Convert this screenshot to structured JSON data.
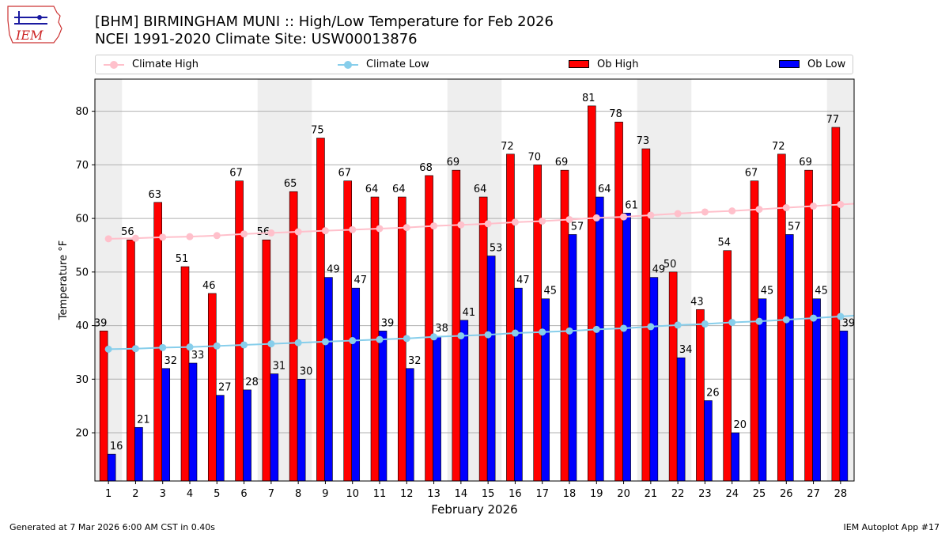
{
  "header": {
    "logo_text": "IEM",
    "title_line1": "[BHM] BIRMINGHAM MUNI :: High/Low Temperature for Feb 2026",
    "title_line2": "NCEI 1991-2020 Climate Site: USW00013876"
  },
  "legend": {
    "climate_high": "Climate High",
    "climate_low": "Climate Low",
    "ob_high": "Ob High",
    "ob_low": "Ob Low"
  },
  "colors": {
    "ob_high": "#ff0000",
    "ob_low": "#0000ff",
    "climate_high": "#ffc0cb",
    "climate_low": "#87ceeb",
    "weekend_band": "#eeeeee",
    "grid": "#b0b0b0"
  },
  "chart_data": {
    "type": "bar",
    "title": "[BHM] BIRMINGHAM MUNI :: High/Low Temperature for Feb 2026",
    "xlabel": "February 2026",
    "ylabel": "Temperature °F",
    "ylim": [
      11,
      86
    ],
    "yticks": [
      20,
      30,
      40,
      50,
      60,
      70,
      80
    ],
    "categories": [
      "1",
      "2",
      "3",
      "4",
      "5",
      "6",
      "7",
      "8",
      "9",
      "10",
      "11",
      "12",
      "13",
      "14",
      "15",
      "16",
      "17",
      "18",
      "19",
      "20",
      "21",
      "22",
      "23",
      "24",
      "25",
      "26",
      "27",
      "28"
    ],
    "weekend_days": [
      1,
      7,
      8,
      14,
      15,
      21,
      22,
      28
    ],
    "grid": true,
    "legend_position": "top",
    "series": [
      {
        "name": "Ob High",
        "kind": "bar",
        "values": [
          39,
          56,
          63,
          51,
          46,
          67,
          56,
          65,
          75,
          67,
          64,
          64,
          68,
          69,
          64,
          72,
          70,
          69,
          81,
          78,
          73,
          50,
          43,
          54,
          67,
          72,
          69,
          77
        ]
      },
      {
        "name": "Ob Low",
        "kind": "bar",
        "values": [
          16,
          21,
          32,
          33,
          27,
          28,
          31,
          30,
          49,
          47,
          39,
          32,
          38,
          41,
          53,
          47,
          45,
          57,
          64,
          61,
          49,
          34,
          26,
          20,
          45,
          57,
          45,
          39
        ]
      },
      {
        "name": "Climate High",
        "kind": "line",
        "values": [
          56.2,
          56.3,
          56.5,
          56.6,
          56.8,
          57.1,
          57.3,
          57.5,
          57.7,
          57.9,
          58.1,
          58.3,
          58.6,
          58.8,
          59.0,
          59.3,
          59.5,
          59.8,
          60.1,
          60.3,
          60.6,
          60.9,
          61.2,
          61.4,
          61.7,
          62.0,
          62.3,
          62.6
        ]
      },
      {
        "name": "Climate Low",
        "kind": "line",
        "values": [
          35.6,
          35.7,
          35.9,
          36.0,
          36.2,
          36.4,
          36.6,
          36.8,
          37.0,
          37.2,
          37.4,
          37.6,
          37.9,
          38.1,
          38.3,
          38.6,
          38.8,
          39.0,
          39.3,
          39.5,
          39.8,
          40.1,
          40.3,
          40.6,
          40.8,
          41.1,
          41.4,
          41.7
        ]
      }
    ]
  },
  "footer": {
    "generated": "Generated at 7 Mar 2026 6:00 AM CST in 0.40s",
    "app": "IEM Autoplot App #17"
  }
}
